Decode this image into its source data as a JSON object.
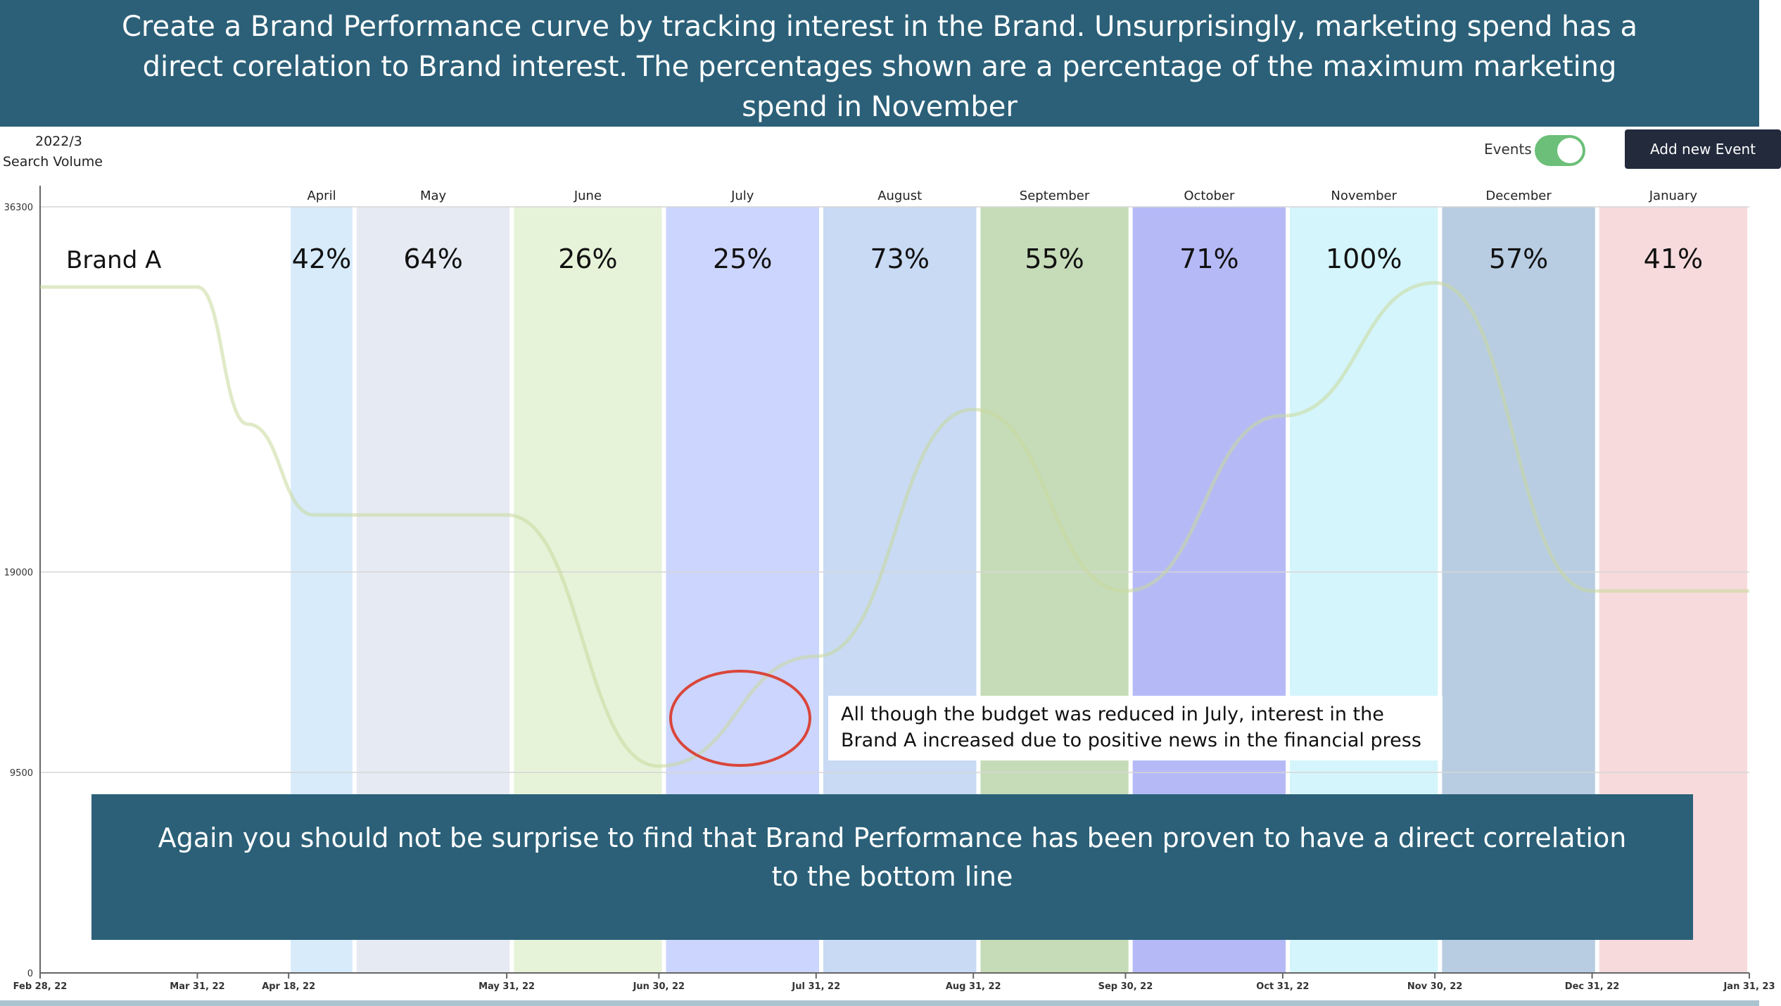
{
  "header": {
    "banner_text": "Create a Brand Performance curve by tracking interest in the Brand. Unsurprisingly, marketing spend has a direct corelation to Brand interest. The percentages shown are a percentage of the maximum marketing spend in November"
  },
  "toolbar": {
    "date": "2022/3",
    "metric": "Search Volume",
    "events_label": "Events",
    "events_on": true,
    "add_event_label": "Add new Event"
  },
  "colors": {
    "banner": "#2b6078",
    "line": "#c8d89a",
    "circle": "#d9463a",
    "button": "#222a3c",
    "toggle": "#6cbf78"
  },
  "chart_data": {
    "type": "line",
    "series": [
      {
        "name": "Brand A",
        "points": [
          [
            "2022-02-28",
            32500
          ],
          [
            "2022-03-31",
            32500
          ],
          [
            "2022-04-10",
            26000
          ],
          [
            "2022-04-23",
            21700
          ],
          [
            "2022-05-31",
            21700
          ],
          [
            "2022-06-30",
            9800
          ],
          [
            "2022-07-31",
            15000
          ],
          [
            "2022-08-31",
            26700
          ],
          [
            "2022-09-30",
            18100
          ],
          [
            "2022-10-31",
            26400
          ],
          [
            "2022-11-30",
            32700
          ],
          [
            "2022-12-31",
            18100
          ],
          [
            "2023-01-31",
            18100
          ]
        ]
      }
    ],
    "y_ticks": [
      0,
      9500,
      19000,
      36300
    ],
    "ylim": [
      0,
      36300
    ],
    "x_ticks": [
      {
        "date": "2022-02-28",
        "label": "Feb 28, 22"
      },
      {
        "date": "2022-03-31",
        "label": "Mar 31, 22"
      },
      {
        "date": "2022-04-18",
        "label": "Apr 18, 22"
      },
      {
        "date": "2022-05-31",
        "label": "May 31, 22"
      },
      {
        "date": "2022-06-30",
        "label": "Jun 30, 22"
      },
      {
        "date": "2022-07-31",
        "label": "Jul 31, 22"
      },
      {
        "date": "2022-08-31",
        "label": "Aug 31, 22"
      },
      {
        "date": "2022-09-30",
        "label": "Sep 30, 22"
      },
      {
        "date": "2022-10-31",
        "label": "Oct 31, 22"
      },
      {
        "date": "2022-11-30",
        "label": "Nov 30, 22"
      },
      {
        "date": "2022-12-31",
        "label": "Dec 31, 22"
      },
      {
        "date": "2023-01-31",
        "label": "Jan 31, 23"
      }
    ],
    "events": [
      {
        "name": "April",
        "start": "2022-04-18",
        "end": "2022-04-30",
        "percent": "42%",
        "color": "#d7ebfb"
      },
      {
        "name": "May",
        "start": "2022-05-01",
        "end": "2022-05-31",
        "percent": "64%",
        "color": "#e6eaf2"
      },
      {
        "name": "June",
        "start": "2022-06-01",
        "end": "2022-06-30",
        "percent": "26%",
        "color": "#e6f3d9"
      },
      {
        "name": "July",
        "start": "2022-07-01",
        "end": "2022-07-31",
        "percent": "25%",
        "color": "#ccd5fd"
      },
      {
        "name": "August",
        "start": "2022-08-01",
        "end": "2022-08-31",
        "percent": "73%",
        "color": "#c8daf4"
      },
      {
        "name": "September",
        "start": "2022-09-01",
        "end": "2022-09-30",
        "percent": "55%",
        "color": "#c6dcb8"
      },
      {
        "name": "October",
        "start": "2022-10-01",
        "end": "2022-10-31",
        "percent": "71%",
        "color": "#b5baf6"
      },
      {
        "name": "November",
        "start": "2022-11-01",
        "end": "2022-11-30",
        "percent": "100%",
        "color": "#d4f5fb"
      },
      {
        "name": "December",
        "start": "2022-12-01",
        "end": "2022-12-31",
        "percent": "57%",
        "color": "#b8cde2"
      },
      {
        "name": "January",
        "start": "2023-01-01",
        "end": "2023-01-31",
        "percent": "41%",
        "color": "#f7dadc"
      }
    ],
    "grid": true
  },
  "annotations": {
    "callout_text": "All though the budget was reduced in July, interest in the Brand A increased due to positive news in the financial press",
    "bottom_text": "Again you should not be surprise to find that Brand Performance has been proven to have a direct correlation to the bottom line"
  }
}
